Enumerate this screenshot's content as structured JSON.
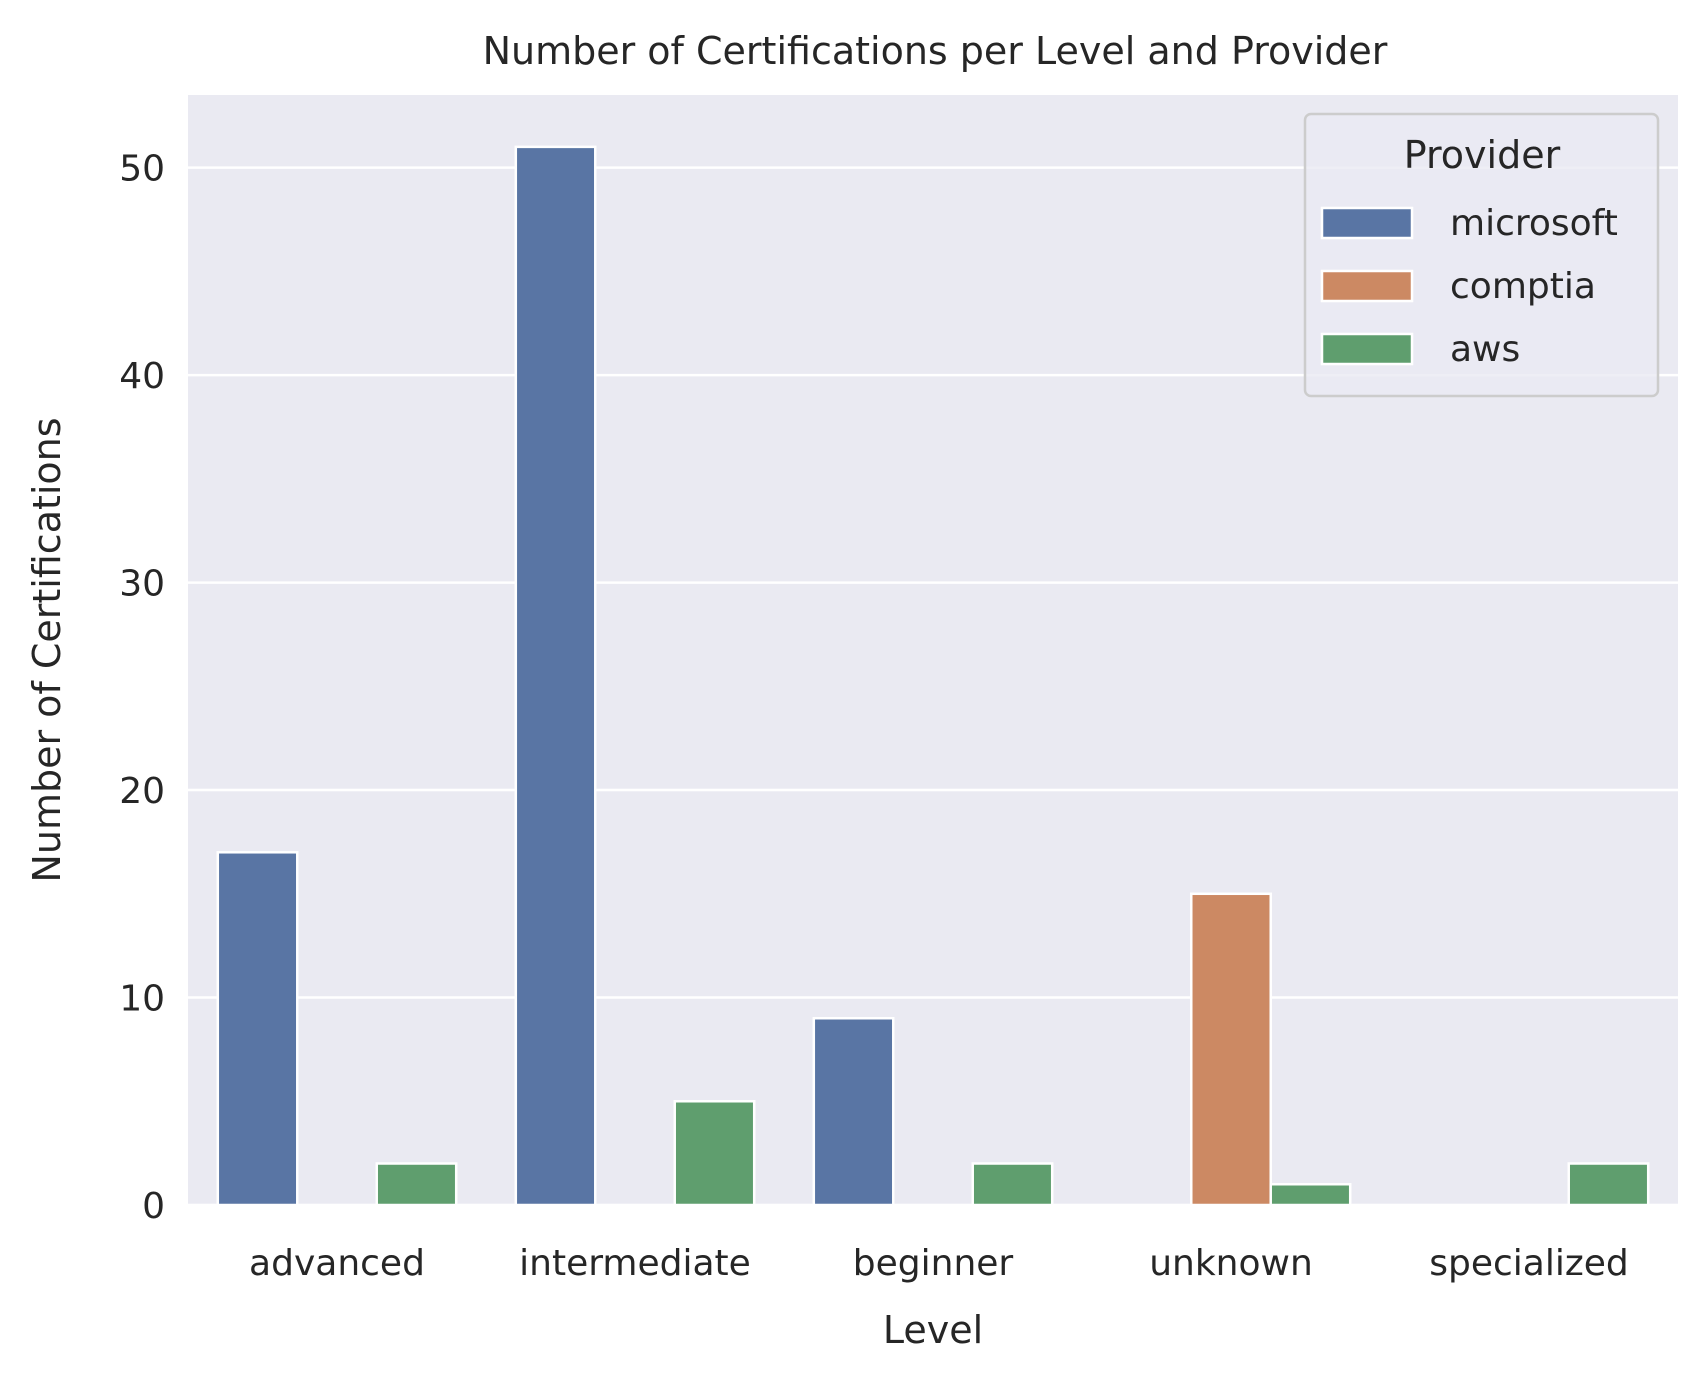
{
  "chart_data": {
    "type": "bar",
    "title": "Number of Certifications per Level and Provider",
    "xlabel": "Level",
    "ylabel": "Number of Certifications",
    "categories": [
      "advanced",
      "intermediate",
      "beginner",
      "unknown",
      "specialized"
    ],
    "series": [
      {
        "name": "microsoft",
        "values": [
          17,
          51,
          9,
          0,
          0
        ]
      },
      {
        "name": "comptia",
        "values": [
          0,
          0,
          0,
          15,
          0
        ]
      },
      {
        "name": "aws",
        "values": [
          2,
          5,
          2,
          1,
          2
        ]
      }
    ],
    "ylim": [
      0,
      53.5
    ],
    "yticks": [
      0,
      10,
      20,
      30,
      40,
      50
    ],
    "grid": true,
    "legend": {
      "title": "Provider",
      "placement": "top-right"
    },
    "colors": {
      "microsoft": "#5975a4",
      "comptia": "#cc8963",
      "aws": "#5f9e6e",
      "plot_background": "#eaeaf2",
      "grid": "#ffffff"
    }
  }
}
